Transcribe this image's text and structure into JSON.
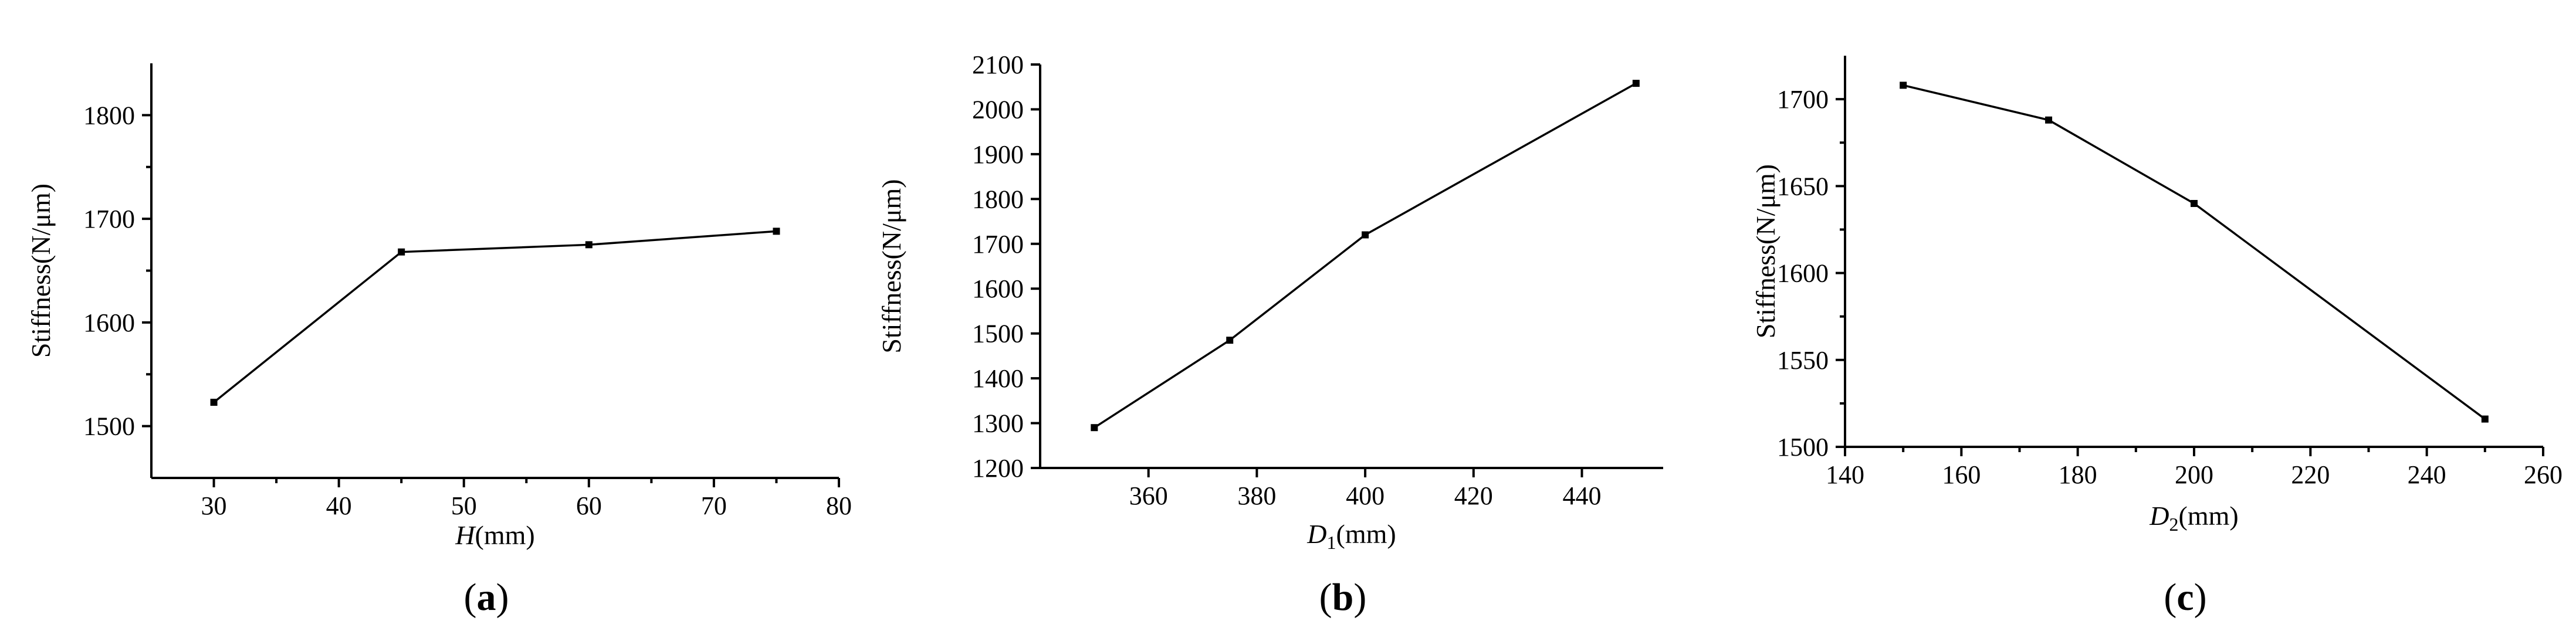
{
  "charts": [
    {
      "id": "a",
      "panel_label": "a",
      "type": "line",
      "ylabel": "Stiffness(N/μm)",
      "xlabel_italic": "H",
      "xlabel_sub": "",
      "xlabel_unit": "(mm)",
      "xlim": [
        25,
        80
      ],
      "ylim": [
        1450,
        1850
      ],
      "xticks": [
        30,
        40,
        50,
        60,
        70,
        80
      ],
      "yticks": [
        1500,
        1600,
        1700,
        1800
      ],
      "x": [
        30,
        45,
        60,
        75
      ],
      "y": [
        1523,
        1668,
        1675,
        1688
      ],
      "line_color": "#000000"
    },
    {
      "id": "b",
      "panel_label": "b",
      "type": "line",
      "ylabel": "Stiffness(N/μm)",
      "xlabel_italic": "D",
      "xlabel_sub": "1",
      "xlabel_unit": "(mm)",
      "xlim": [
        340,
        455
      ],
      "ylim": [
        1200,
        2100
      ],
      "xticks": [
        360,
        380,
        400,
        420,
        440
      ],
      "yticks": [
        1200,
        1300,
        1400,
        1500,
        1600,
        1700,
        1800,
        1900,
        2000,
        2100
      ],
      "x": [
        350,
        375,
        400,
        450
      ],
      "y": [
        1290,
        1485,
        1720,
        2058
      ],
      "line_color": "#000000"
    },
    {
      "id": "c",
      "panel_label": "c",
      "type": "line",
      "ylabel": "Stiffness(N/μm)",
      "xlabel_italic": "D",
      "xlabel_sub": "2",
      "xlabel_unit": "(mm)",
      "xlim": [
        140,
        260
      ],
      "ylim": [
        1500,
        1725
      ],
      "xticks": [
        140,
        160,
        180,
        200,
        220,
        240,
        260
      ],
      "yticks": [
        1500,
        1550,
        1600,
        1650,
        1700
      ],
      "x": [
        150,
        175,
        200,
        250
      ],
      "y": [
        1708,
        1688,
        1640,
        1516
      ],
      "line_color": "#555555"
    }
  ]
}
